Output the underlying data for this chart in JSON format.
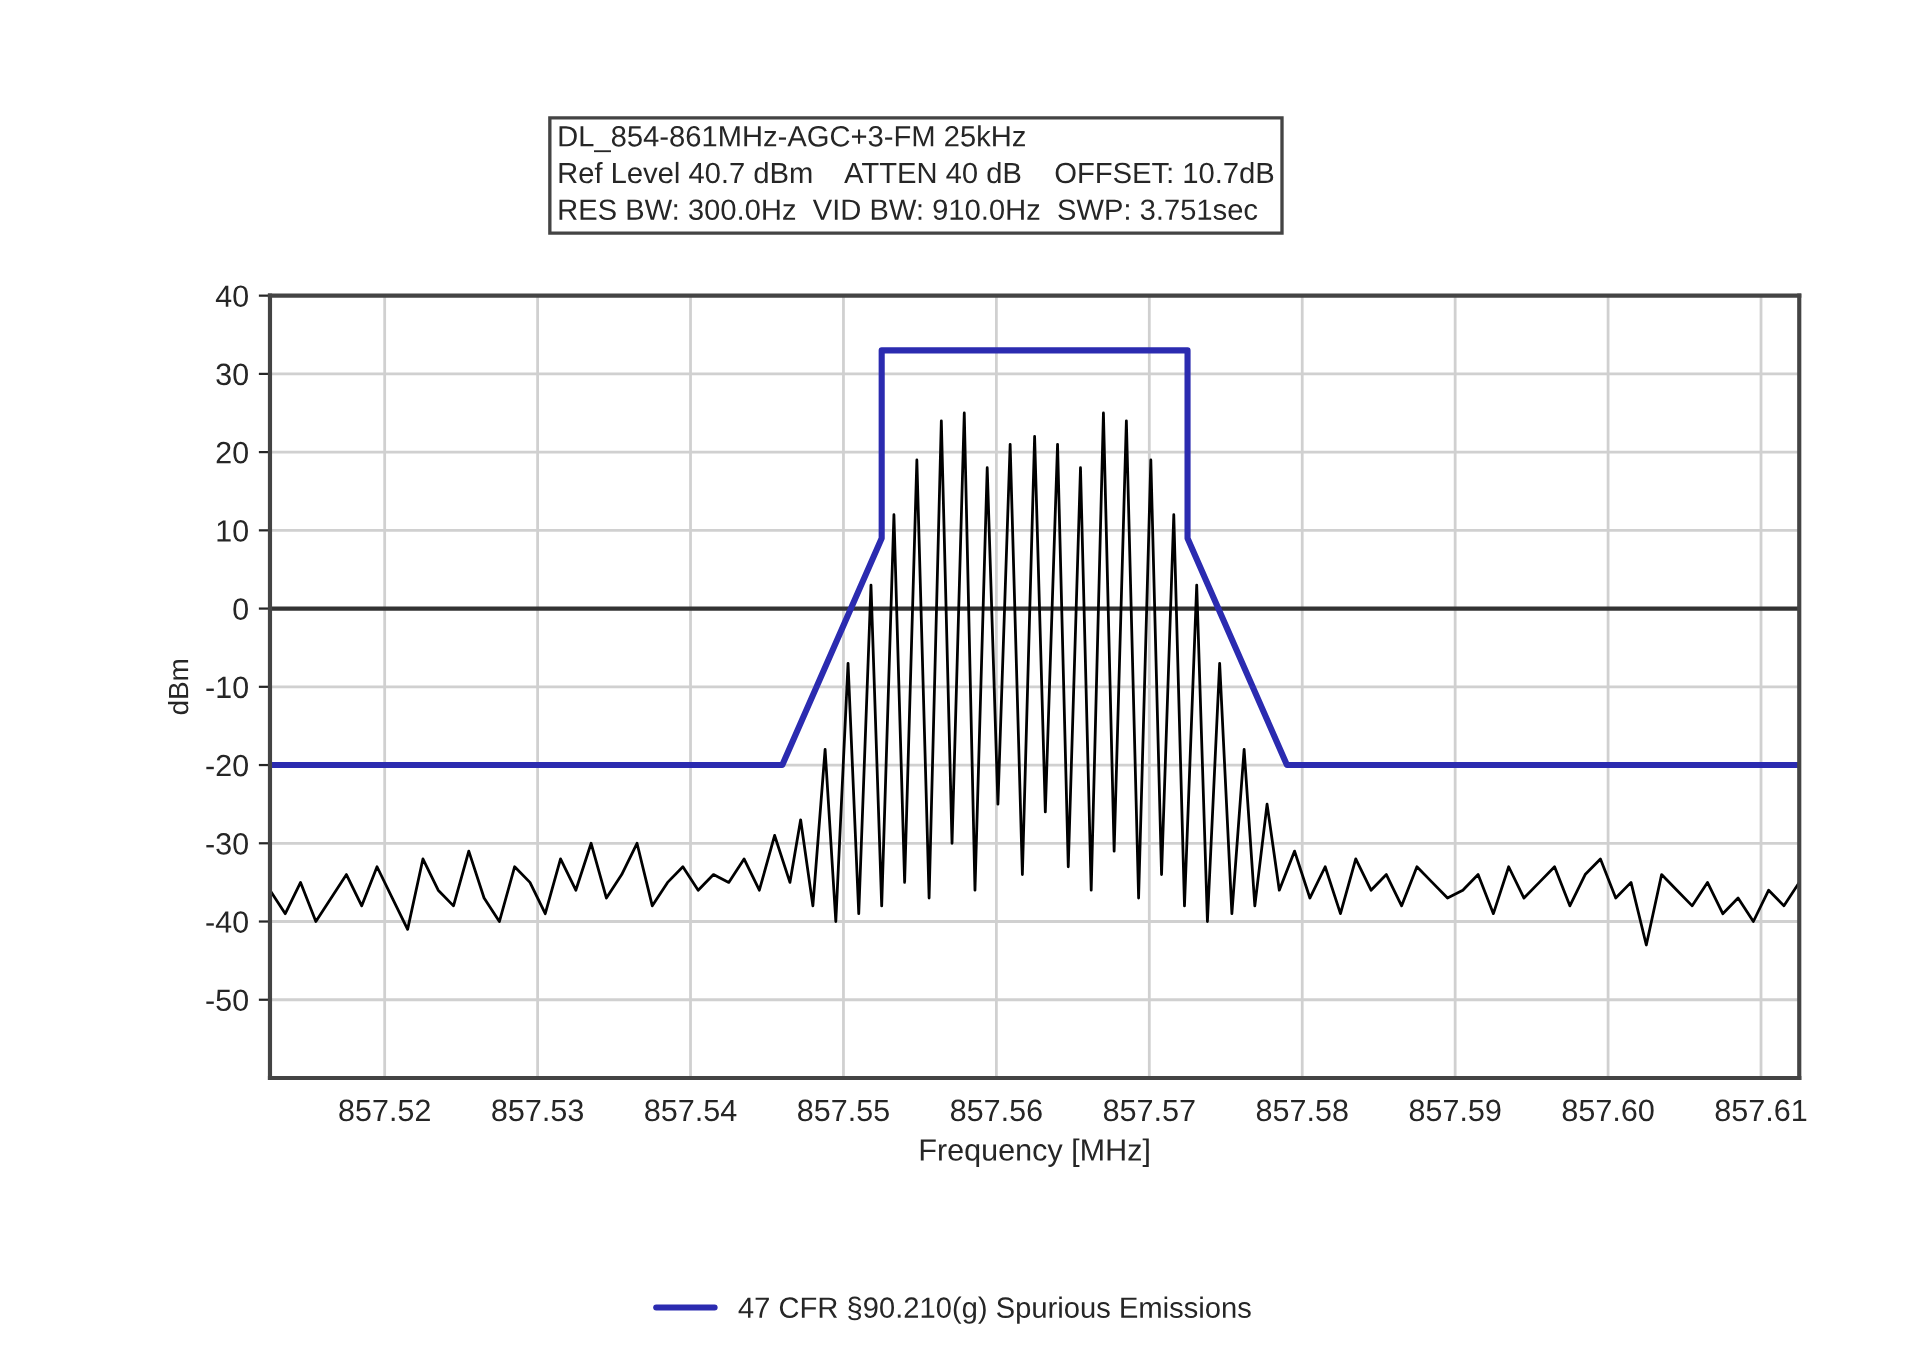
{
  "chart_data": {
    "type": "line",
    "xlabel": "Frequency [MHz]",
    "ylabel": "dBm",
    "annotations": [
      "DL_854-861MHz-AGC+3-FM 25kHz",
      "Ref Level 40.7 dBm    ATTEN 40 dB    OFFSET: 10.7dB",
      "RES BW: 300.0Hz  VID BW: 910.0Hz  SWP: 3.751sec"
    ],
    "xlim": [
      857.5125,
      857.6125
    ],
    "ylim": [
      -60,
      40
    ],
    "xticks": [
      857.52,
      857.53,
      857.54,
      {
        "value": 857.55,
        "label": "857.55"
      },
      857.56,
      857.57,
      857.58,
      857.59,
      {
        "value": 857.6,
        "label": "857.60"
      },
      857.61
    ],
    "yticks": [
      -50,
      -40,
      -30,
      -20,
      -10,
      0,
      10,
      20,
      30,
      40
    ],
    "grid": true,
    "legend": "bottom",
    "ref_lines": [
      {
        "axis": "y",
        "value": 0,
        "color": "#333333"
      }
    ],
    "series": [
      {
        "color": "#000000",
        "x": [
          857.5125,
          857.5135,
          857.5145,
          857.5155,
          857.5165,
          857.5175,
          857.5185,
          857.5195,
          857.5205,
          857.5215,
          857.5225,
          857.5235,
          857.5245,
          857.5255,
          857.5265,
          857.5275,
          857.5285,
          857.5295,
          857.5305,
          857.5315,
          857.5325,
          857.5335,
          857.5345,
          857.5355,
          857.5365,
          857.5375,
          857.5385,
          857.5395,
          857.5405,
          857.5415,
          857.5425,
          857.5435,
          857.5445,
          857.5455,
          857.5465,
          857.5472,
          857.548,
          857.5488,
          857.5495,
          857.5503,
          857.551,
          857.5518,
          857.5525,
          857.5533,
          857.554,
          857.5548,
          857.5556,
          857.5564,
          857.5571,
          857.5579,
          857.5586,
          857.5594,
          857.5601,
          857.5609,
          857.5617,
          857.5625,
          857.5632,
          857.564,
          857.5647,
          857.5655,
          857.5662,
          857.567,
          857.5677,
          857.5685,
          857.5693,
          857.5701,
          857.5708,
          857.5716,
          857.5723,
          857.5731,
          857.5738,
          857.5746,
          857.5754,
          857.5762,
          857.5769,
          857.5777,
          857.5785,
          857.5795,
          857.5805,
          857.5815,
          857.5825,
          857.5835,
          857.5845,
          857.5855,
          857.5865,
          857.5875,
          857.5885,
          857.5895,
          857.5905,
          857.5915,
          857.5925,
          857.5935,
          857.5945,
          857.5955,
          857.5965,
          857.5975,
          857.5985,
          857.5995,
          857.6005,
          857.6015,
          857.6025,
          857.6035,
          857.6045,
          857.6055,
          857.6065,
          857.6075,
          857.6085,
          857.6095,
          857.6105,
          857.6115,
          857.6125
        ],
        "values": [
          -36,
          -39,
          -35,
          -40,
          -37,
          -34,
          -38,
          -33,
          -37,
          -41,
          -32,
          -36,
          -38,
          -31,
          -37,
          -40,
          -33,
          -35,
          -39,
          -32,
          -36,
          -30,
          -37,
          -34,
          -30,
          -38,
          -35,
          -33,
          -36,
          -34,
          -35,
          -32,
          -36,
          -29,
          -35,
          -27,
          -38,
          -18,
          -40,
          -7,
          -39,
          3,
          -38,
          12,
          -35,
          19,
          -37,
          24,
          -30,
          25,
          -36,
          18,
          -25,
          21,
          -34,
          22,
          -26,
          21,
          -33,
          18,
          -36,
          25,
          -31,
          24,
          -37,
          19,
          -34,
          12,
          -38,
          3,
          -40,
          -7,
          -39,
          -18,
          -38,
          -25,
          -36,
          -31,
          -37,
          -33,
          -39,
          -32,
          -36,
          -34,
          -38,
          -33,
          -35,
          -37,
          -36,
          -34,
          -39,
          -33,
          -37,
          -35,
          -33,
          -38,
          -34,
          -32,
          -37,
          -35,
          -43,
          -34,
          -36,
          -38,
          -35,
          -39,
          -37,
          -40,
          -36,
          -38,
          -35
        ]
      },
      {
        "name": "47 CFR §90.210(g) Spurious Emissions",
        "color": "#2b2bb0",
        "x": [
          857.5125,
          857.546,
          857.5525,
          857.5525,
          857.5725,
          857.5725,
          857.579,
          857.6125
        ],
        "values": [
          -20,
          -20,
          9,
          33,
          33,
          9,
          -20,
          -20
        ]
      }
    ]
  }
}
